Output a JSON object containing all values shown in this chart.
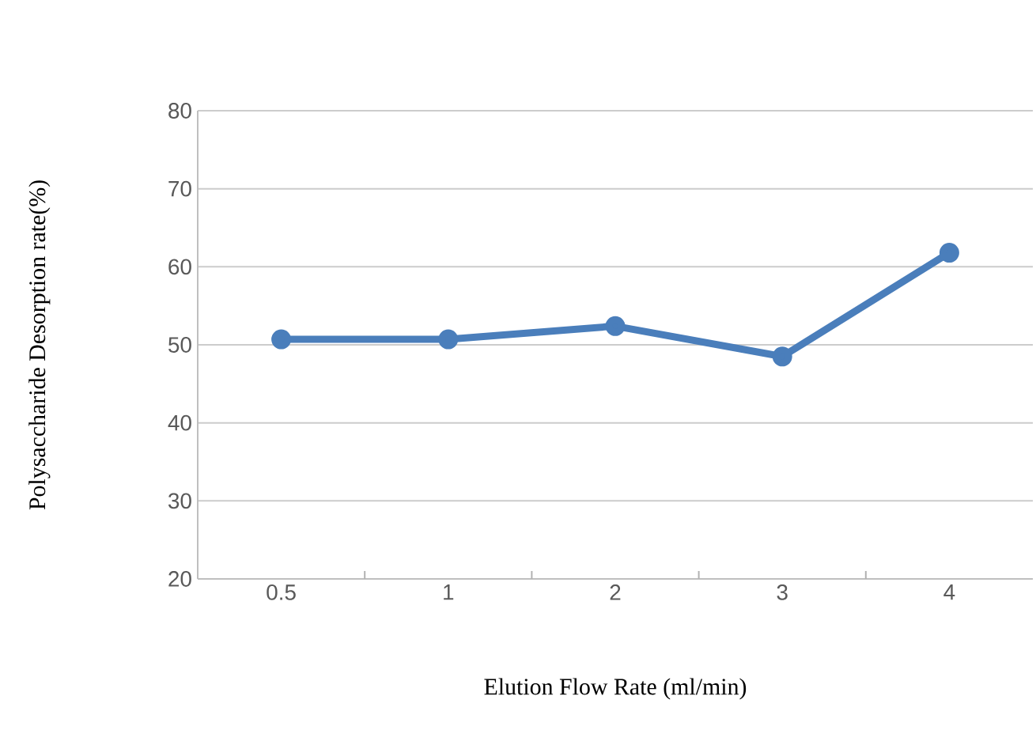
{
  "chart_data": {
    "type": "line",
    "xlabel": "Elution Flow Rate (ml/min)",
    "ylabel": "Polysaccharide Desorption rate(%)",
    "categories": [
      "0.5",
      "1",
      "2",
      "3",
      "4"
    ],
    "series": [
      {
        "color": "#4a7ebb",
        "values": [
          50.7,
          50.7,
          52.4,
          48.5,
          61.8
        ]
      }
    ],
    "ylim": [
      20,
      80
    ],
    "yticks": [
      20,
      30,
      40,
      50,
      60,
      70,
      80
    ],
    "grid": "y",
    "marker": "circle",
    "line_style": "solid",
    "legend": false
  }
}
